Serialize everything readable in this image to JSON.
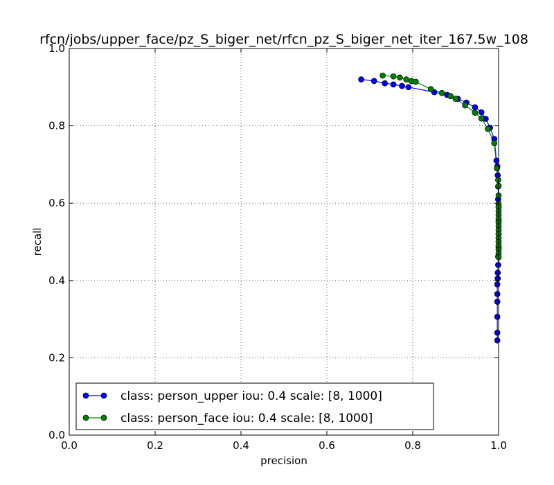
{
  "chart_data": {
    "type": "line",
    "title": "rfcn/jobs/upper_face/pz_S_biger_net/rfcn_pz_S_biger_net_iter_167.5w_108",
    "xlabel": "precision",
    "ylabel": "recall",
    "xlim": [
      0.0,
      1.0
    ],
    "ylim": [
      0.0,
      1.0
    ],
    "x_ticks": [
      "0.0",
      "0.2",
      "0.4",
      "0.6",
      "0.8",
      "1.0"
    ],
    "y_ticks": [
      "0.0",
      "0.2",
      "0.4",
      "0.6",
      "0.8",
      "1.0"
    ],
    "x_tick_values": [
      0.0,
      0.2,
      0.4,
      0.6,
      0.8,
      1.0
    ],
    "y_tick_values": [
      0.0,
      0.2,
      0.4,
      0.6,
      0.8,
      1.0
    ],
    "grid": true,
    "legend_position": "lower-left",
    "series": [
      {
        "name": "class: person_upper iou: 0.4 scale: [8, 1000]",
        "color": "#0000ff",
        "points": [
          [
            0.68,
            0.92
          ],
          [
            0.71,
            0.916
          ],
          [
            0.735,
            0.91
          ],
          [
            0.755,
            0.907
          ],
          [
            0.775,
            0.903
          ],
          [
            0.79,
            0.9
          ],
          [
            0.85,
            0.887
          ],
          [
            0.88,
            0.88
          ],
          [
            0.905,
            0.87
          ],
          [
            0.925,
            0.86
          ],
          [
            0.945,
            0.848
          ],
          [
            0.96,
            0.835
          ],
          [
            0.97,
            0.818
          ],
          [
            0.98,
            0.795
          ],
          [
            0.99,
            0.766
          ],
          [
            0.995,
            0.71
          ],
          [
            0.997,
            0.695
          ],
          [
            0.998,
            0.672
          ],
          [
            0.999,
            0.643
          ],
          [
            0.999,
            0.61
          ],
          [
            1.0,
            0.59
          ],
          [
            1.0,
            0.555
          ],
          [
            1.0,
            0.52
          ],
          [
            1.0,
            0.485
          ],
          [
            0.999,
            0.462
          ],
          [
            0.999,
            0.44
          ],
          [
            0.998,
            0.42
          ],
          [
            0.998,
            0.405
          ],
          [
            0.997,
            0.39
          ],
          [
            0.997,
            0.365
          ],
          [
            0.997,
            0.345
          ],
          [
            0.997,
            0.306
          ],
          [
            0.997,
            0.265
          ],
          [
            0.997,
            0.245
          ]
        ]
      },
      {
        "name": "class: person_face iou: 0.4 scale: [8, 1000]",
        "color": "#008000",
        "points": [
          [
            0.73,
            0.93
          ],
          [
            0.755,
            0.928
          ],
          [
            0.77,
            0.925
          ],
          [
            0.785,
            0.92
          ],
          [
            0.797,
            0.916
          ],
          [
            0.807,
            0.914
          ],
          [
            0.842,
            0.895
          ],
          [
            0.868,
            0.885
          ],
          [
            0.888,
            0.877
          ],
          [
            0.9,
            0.87
          ],
          [
            0.922,
            0.853
          ],
          [
            0.945,
            0.834
          ],
          [
            0.96,
            0.819
          ],
          [
            0.975,
            0.792
          ],
          [
            0.99,
            0.755
          ],
          [
            0.996,
            0.69
          ],
          [
            0.999,
            0.66
          ],
          [
            1.0,
            0.645
          ],
          [
            1.0,
            0.62
          ],
          [
            1.0,
            0.598
          ],
          [
            1.0,
            0.59
          ],
          [
            1.0,
            0.58
          ],
          [
            1.0,
            0.57
          ],
          [
            1.0,
            0.56
          ],
          [
            1.0,
            0.55
          ],
          [
            1.0,
            0.54
          ],
          [
            1.0,
            0.53
          ],
          [
            1.0,
            0.52
          ],
          [
            1.0,
            0.51
          ],
          [
            1.0,
            0.5
          ],
          [
            1.0,
            0.49
          ],
          [
            1.0,
            0.48
          ],
          [
            1.0,
            0.47
          ],
          [
            1.0,
            0.46
          ]
        ]
      }
    ]
  }
}
